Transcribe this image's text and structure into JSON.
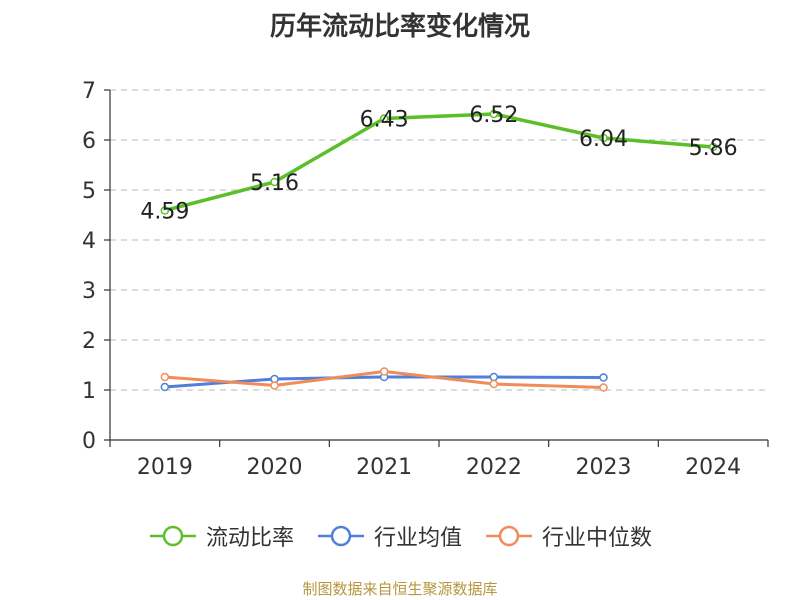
{
  "title": "历年流动比率变化情况",
  "source": "制图数据来自恒生聚源数据库",
  "chart_data": {
    "type": "line",
    "title": "历年流动比率变化情况",
    "categories": [
      "2019",
      "2020",
      "2021",
      "2022",
      "2023",
      "2024"
    ],
    "ylim": [
      0,
      7
    ],
    "yticks": [
      0,
      1,
      2,
      3,
      4,
      5,
      6,
      7
    ],
    "grid": true,
    "legend_position": "bottom",
    "series": [
      {
        "name": "流动比率",
        "color": "#5bbf2a",
        "values": [
          4.59,
          5.16,
          6.43,
          6.52,
          6.04,
          5.86
        ],
        "labels": [
          "4.59",
          "5.16",
          "6.43",
          "6.52",
          "6.04",
          "5.86"
        ]
      },
      {
        "name": "行业均值",
        "color": "#4f7fdb",
        "values": [
          1.06,
          1.22,
          1.26,
          1.26,
          1.25,
          null
        ]
      },
      {
        "name": "行业中位数",
        "color": "#f08c5a",
        "values": [
          1.26,
          1.09,
          1.37,
          1.12,
          1.05,
          null
        ]
      }
    ]
  }
}
